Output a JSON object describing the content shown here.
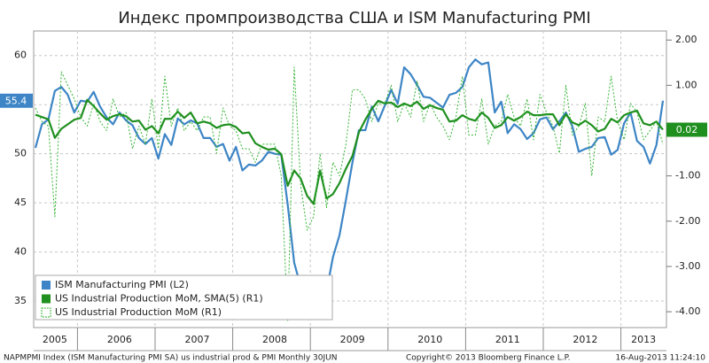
{
  "chart_data": {
    "type": "line",
    "title": "Индекс промпроизводства США и ISM Manufacturing PMI",
    "footer": "NAPMPMI Index (ISM Manufacturing PMI SA) us industrial prod & PMI  Monthly 30JUN",
    "copyright": "Copyright© 2013 Bloomberg Finance L.P.",
    "timestamp": "16-Aug-2013 11:24:10",
    "categories": [
      null,
      null,
      null,
      "2005",
      null,
      null,
      null,
      null,
      null,
      null,
      null,
      null,
      null,
      "2006",
      null,
      null,
      null,
      null,
      null,
      null,
      null,
      null,
      null,
      null,
      null,
      "2007",
      null,
      null,
      null,
      null,
      null,
      null,
      null,
      null,
      null,
      null,
      null,
      "2008",
      null,
      null,
      null,
      null,
      null,
      null,
      null,
      null,
      null,
      null,
      null,
      "2009",
      null,
      null,
      null,
      null,
      null,
      null,
      null,
      null,
      null,
      null,
      null,
      "2010",
      null,
      null,
      null,
      null,
      null,
      null,
      null,
      null,
      null,
      null,
      null,
      "2011",
      null,
      null,
      null,
      null,
      null,
      null,
      null,
      null,
      null,
      null,
      null,
      "2012",
      null,
      null,
      null,
      null,
      null,
      null,
      null,
      null,
      "2013",
      null,
      null,
      null
    ],
    "series": [
      {
        "name": "ISM Manufacturing PMI (L2)",
        "color": "#3d85c6",
        "style": "solid",
        "axis": "y",
        "values": [
          50.6,
          53.0,
          53.5,
          56.4,
          56.8,
          56.0,
          54.2,
          55.4,
          55.3,
          56.3,
          54.8,
          53.7,
          53.0,
          54.2,
          53.4,
          52.9,
          51.6,
          51.0,
          51.6,
          49.5,
          52.0,
          50.9,
          53.6,
          53.0,
          53.4,
          53.1,
          51.6,
          51.6,
          50.7,
          51.0,
          49.3,
          50.7,
          48.3,
          48.9,
          48.8,
          49.3,
          50.2,
          50.0,
          49.9,
          44.8,
          38.9,
          36.5,
          33.3,
          35.0,
          35.8,
          36.0,
          39.5,
          41.7,
          45.3,
          49.1,
          52.4,
          52.4,
          54.8,
          53.3,
          54.9,
          56.5,
          55.1,
          58.8,
          58.1,
          57.0,
          55.8,
          55.7,
          55.2,
          54.7,
          56.0,
          56.2,
          56.8,
          58.8,
          59.6,
          59.1,
          59.3,
          54.2,
          55.3,
          52.1,
          53.0,
          52.5,
          51.5,
          52.1,
          53.5,
          53.7,
          52.5,
          53.3,
          54.2,
          52.8,
          50.2,
          50.5,
          50.7,
          51.6,
          51.7,
          49.9,
          50.4,
          53.1,
          54.2,
          51.3,
          50.7,
          49.0,
          50.9,
          55.4
        ]
      },
      {
        "name": "US Industrial Production MoM, SMA(5) (R1)",
        "color": "#1f8f1f",
        "style": "solid",
        "axis": "y2",
        "values": [
          0.35,
          0.3,
          0.25,
          -0.16,
          0.04,
          0.14,
          0.24,
          0.28,
          0.68,
          0.54,
          0.38,
          0.24,
          0.32,
          0.36,
          0.32,
          0.2,
          0.22,
          0.02,
          0.1,
          -0.06,
          0.26,
          0.26,
          0.42,
          0.28,
          0.4,
          0.16,
          0.2,
          0.16,
          0.06,
          0.12,
          0.14,
          0.08,
          -0.06,
          -0.04,
          -0.28,
          -0.36,
          -0.42,
          -0.4,
          -0.52,
          -1.22,
          -0.88,
          -1.06,
          -1.44,
          -1.62,
          -0.88,
          -1.5,
          -1.4,
          -1.16,
          -0.84,
          -0.56,
          -0.04,
          0.24,
          0.48,
          0.66,
          0.6,
          0.62,
          0.52,
          0.6,
          0.54,
          0.64,
          0.48,
          0.56,
          0.5,
          0.46,
          0.2,
          0.22,
          0.34,
          0.26,
          0.22,
          0.4,
          0.28,
          0.06,
          0.12,
          0.3,
          0.22,
          0.3,
          0.42,
          0.34,
          0.34,
          0.36,
          0.36,
          0.12,
          0.36,
          0.18,
          0.12,
          0.22,
          0.12,
          -0.02,
          0.04,
          0.26,
          0.18,
          0.34,
          0.4,
          0.44,
          0.16,
          0.12,
          0.2,
          0.02
        ]
      },
      {
        "name": "US Industrial Production MoM  (R1)",
        "color": "#33b333",
        "style": "dotted",
        "axis": "y2",
        "values": [
          0.5,
          0.2,
          0.1,
          -1.9,
          1.3,
          1.0,
          0.7,
          0.3,
          0.1,
          0.6,
          0.2,
          0.0,
          0.7,
          0.3,
          0.4,
          -0.4,
          0.1,
          -0.3,
          0.7,
          -0.4,
          1.2,
          0.1,
          0.5,
          0.0,
          0.2,
          0.0,
          0.3,
          0.3,
          -0.5,
          0.5,
          0.1,
          0.0,
          -0.4,
          -0.4,
          -0.7,
          -0.3,
          -0.3,
          -0.3,
          -1.0,
          -4.2,
          1.4,
          -1.2,
          -2.2,
          -1.9,
          -0.5,
          -1.7,
          -0.7,
          -1.0,
          -0.3,
          0.9,
          0.9,
          0.7,
          0.2,
          0.6,
          0.6,
          1.0,
          0.2,
          0.6,
          0.3,
          1.1,
          0.2,
          0.6,
          0.3,
          0.1,
          -0.2,
          0.3,
          1.2,
          -0.1,
          -0.1,
          0.7,
          -0.3,
          0.1,
          0.2,
          0.8,
          0.3,
          0.1,
          0.7,
          -0.2,
          0.8,
          0.4,
          0.1,
          -0.5,
          1.0,
          -0.1,
          0.1,
          0.6,
          -1.0,
          0.3,
          0.2,
          1.2,
          0.2,
          -0.2,
          0.6,
          0.4,
          -0.2,
          0.0,
          0.2,
          -0.3
        ]
      }
    ],
    "ylim": [
      32.3,
      62.5
    ],
    "yticks": [
      35,
      40,
      45,
      50,
      55,
      60
    ],
    "y2lim": [
      -4.35,
      2.2
    ],
    "y2ticks": [
      {
        "value": 2,
        "label": "2.00"
      },
      {
        "value": 1,
        "label": "1.00"
      },
      {
        "value": 0,
        "label": "0"
      },
      {
        "value": -1,
        "label": "-1.00"
      },
      {
        "value": -2,
        "label": "-2.00"
      },
      {
        "value": -3,
        "label": "-3.00"
      },
      {
        "value": -4,
        "label": "-4.00"
      }
    ],
    "grid": true,
    "legend": "lower left"
  }
}
